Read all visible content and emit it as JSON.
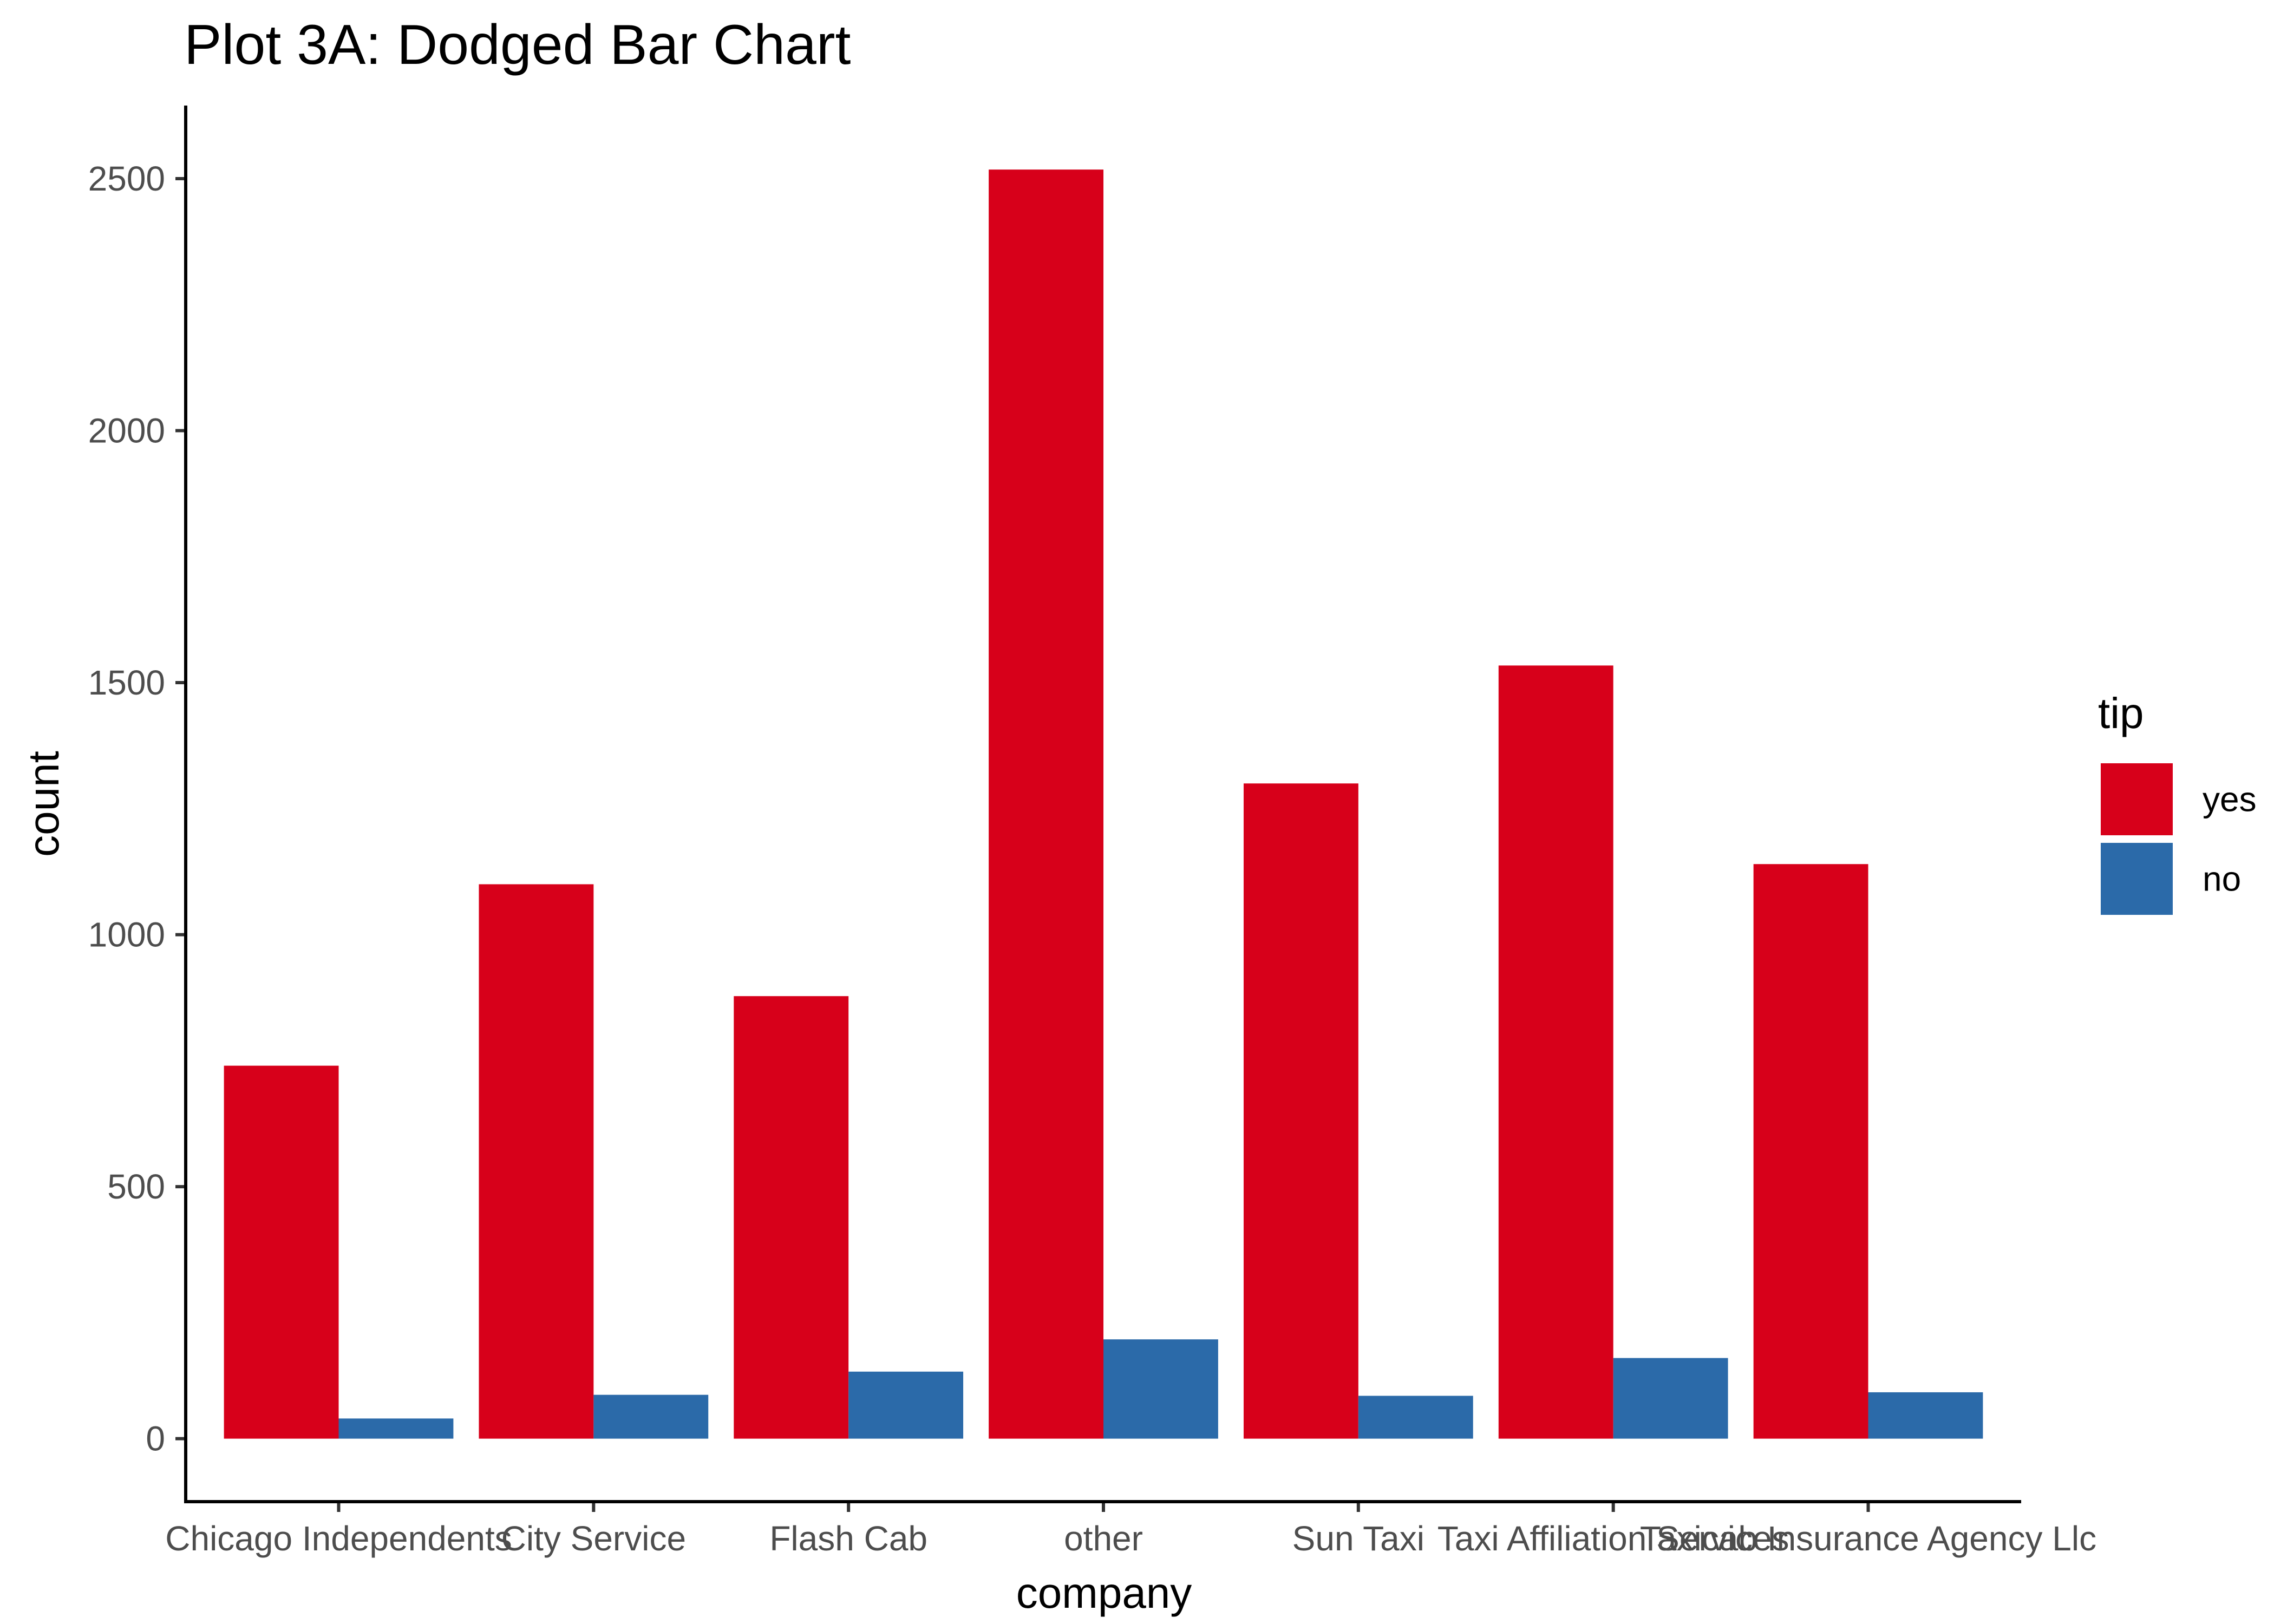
{
  "chart_data": {
    "type": "bar",
    "title": "Plot 3A: Dodged Bar Chart",
    "xlabel": "company",
    "ylabel": "count",
    "categories": [
      "Chicago Independents",
      "City Service",
      "Flash Cab",
      "other",
      "Sun Taxi",
      "Taxi Affiliation Services",
      "Taxicab Insurance Agency Llc"
    ],
    "series": [
      {
        "name": "yes",
        "color": "#d7001a",
        "values": [
          740,
          1100,
          878,
          2518,
          1300,
          1534,
          1140
        ]
      },
      {
        "name": "no",
        "color": "#2b6aa9",
        "values": [
          40,
          87,
          133,
          197,
          85,
          160,
          92
        ]
      }
    ],
    "ylim": [
      -125,
      2645
    ],
    "yticks": [
      0,
      500,
      1000,
      1500,
      2000,
      2500
    ],
    "legend": {
      "title": "tip",
      "placement": "right"
    },
    "grid": false
  }
}
